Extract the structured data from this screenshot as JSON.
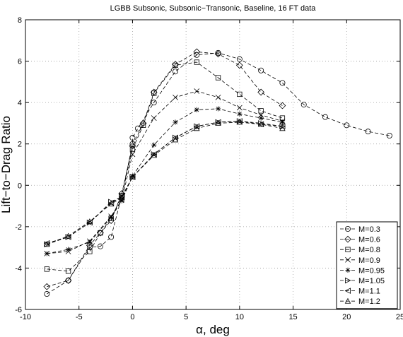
{
  "chart_data": {
    "type": "line",
    "title": "LGBB Subsonic, Subsonic−Transonic, Baseline, 16 FT data",
    "xlabel": "α, deg",
    "ylabel": "Lift−to−Drag Ratio",
    "xlim": [
      -10,
      25
    ],
    "ylim": [
      -6,
      8
    ],
    "xticks": [
      -10,
      -5,
      0,
      5,
      10,
      15,
      20,
      25
    ],
    "yticks": [
      -6,
      -4,
      -2,
      0,
      2,
      4,
      6,
      8
    ],
    "grid": true,
    "legend_position": "bottom-right",
    "series": [
      {
        "name": "M=0.3",
        "marker": "circle",
        "x": [
          -8,
          -6,
          -4,
          -3,
          -2,
          -1,
          0,
          0,
          0.5,
          2,
          4,
          6,
          8,
          10,
          12,
          14,
          16,
          18,
          20,
          22,
          24
        ],
        "y": [
          -5.25,
          -4.6,
          -3.0,
          -2.95,
          -2.5,
          -0.5,
          2.0,
          2.3,
          2.75,
          4.0,
          5.5,
          6.3,
          6.4,
          6.1,
          5.55,
          4.95,
          3.9,
          3.3,
          2.9,
          2.6,
          2.4
        ]
      },
      {
        "name": "M=0.6",
        "marker": "diamond",
        "x": [
          -8,
          -6,
          -4,
          -3,
          -2,
          -1,
          0,
          1,
          2,
          4,
          6,
          8,
          10,
          12,
          14
        ],
        "y": [
          -4.9,
          -4.6,
          -2.9,
          -2.3,
          -1.7,
          -0.4,
          1.9,
          3.0,
          4.5,
          5.85,
          6.45,
          6.35,
          5.8,
          4.5,
          3.85
        ]
      },
      {
        "name": "M=0.8",
        "marker": "square",
        "x": [
          -8,
          -6,
          -4,
          -3,
          -2,
          -1,
          0,
          1,
          2,
          4,
          6,
          8,
          10,
          12,
          14
        ],
        "y": [
          -4.05,
          -4.15,
          -3.2,
          -2.3,
          -1.6,
          -0.5,
          1.75,
          2.9,
          4.45,
          5.8,
          5.95,
          5.2,
          4.4,
          3.6,
          3.25
        ]
      },
      {
        "name": "M=0.9",
        "marker": "x",
        "x": [
          -8,
          -6,
          -4,
          -2,
          -1,
          0,
          2,
          4,
          6,
          8,
          10,
          12,
          14
        ],
        "y": [
          -3.3,
          -3.2,
          -2.7,
          -1.5,
          -0.7,
          1.5,
          3.25,
          4.25,
          4.55,
          4.25,
          3.75,
          3.4,
          3.1
        ]
      },
      {
        "name": "M=0.95",
        "marker": "star",
        "x": [
          -8,
          -6,
          -4,
          -2,
          -1,
          0,
          2,
          4,
          6,
          8,
          10,
          12,
          14
        ],
        "y": [
          -3.3,
          -3.1,
          -2.75,
          -1.55,
          -0.75,
          0.45,
          1.95,
          3.05,
          3.65,
          3.7,
          3.45,
          3.25,
          3.05
        ]
      },
      {
        "name": "M=1.05",
        "marker": "triangle-right",
        "x": [
          -8,
          -6,
          -4,
          -2,
          -1,
          0,
          2,
          4,
          6,
          8,
          10,
          12,
          14
        ],
        "y": [
          -2.85,
          -2.5,
          -1.8,
          -0.8,
          -0.55,
          0.4,
          1.5,
          2.3,
          2.85,
          3.05,
          3.1,
          3.0,
          2.85
        ]
      },
      {
        "name": "M=1.1",
        "marker": "triangle-left",
        "x": [
          -8,
          -6,
          -4,
          -2,
          -1,
          0,
          2,
          4,
          6,
          8,
          10,
          12,
          14
        ],
        "y": [
          -2.8,
          -2.5,
          -1.8,
          -0.85,
          -0.55,
          0.4,
          1.5,
          2.3,
          2.85,
          3.05,
          3.1,
          2.95,
          2.85
        ]
      },
      {
        "name": "M=1.2",
        "marker": "triangle-up",
        "x": [
          -8,
          -6,
          -4,
          -2,
          -1,
          0,
          2,
          4,
          6,
          8,
          10,
          12,
          14
        ],
        "y": [
          -2.85,
          -2.45,
          -1.75,
          -0.9,
          -0.6,
          0.4,
          1.45,
          2.2,
          2.75,
          3.0,
          3.05,
          2.95,
          2.75
        ]
      }
    ]
  }
}
